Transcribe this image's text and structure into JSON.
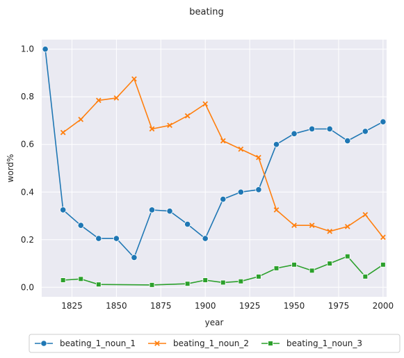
{
  "chart_data": {
    "type": "line",
    "title": "beating",
    "xlabel": "year",
    "ylabel": "word%",
    "xlim": [
      1808,
      2002
    ],
    "ylim": [
      -0.04,
      1.04
    ],
    "xticks": [
      1825,
      1850,
      1875,
      1900,
      1925,
      1950,
      1975,
      2000
    ],
    "yticks": [
      0.0,
      0.2,
      0.4,
      0.6,
      0.8,
      1.0
    ],
    "xtick_labels": [
      "1825",
      "1850",
      "1875",
      "1900",
      "1925",
      "1950",
      "1975",
      "2000"
    ],
    "ytick_labels": [
      "0.0",
      "0.2",
      "0.4",
      "0.6",
      "0.8",
      "1.0"
    ],
    "grid": true,
    "legend_position": "bottom",
    "series": [
      {
        "name": "beating_1_noun_1",
        "color": "#1f77b4",
        "marker": "circle",
        "x": [
          1810,
          1820,
          1830,
          1840,
          1850,
          1860,
          1870,
          1880,
          1890,
          1900,
          1910,
          1920,
          1930,
          1940,
          1950,
          1960,
          1970,
          1980,
          1990,
          2000
        ],
        "y": [
          1.0,
          0.325,
          0.26,
          0.205,
          0.205,
          0.125,
          0.325,
          0.32,
          0.265,
          0.205,
          0.37,
          0.4,
          0.41,
          0.6,
          0.645,
          0.665,
          0.665,
          0.615,
          0.655,
          0.695
        ]
      },
      {
        "name": "beating_1_noun_2",
        "color": "#ff7f0e",
        "marker": "x",
        "x": [
          1820,
          1830,
          1840,
          1850,
          1860,
          1870,
          1880,
          1890,
          1900,
          1910,
          1920,
          1930,
          1940,
          1950,
          1960,
          1970,
          1980,
          1990,
          2000
        ],
        "y": [
          0.65,
          0.705,
          0.785,
          0.795,
          0.875,
          0.665,
          0.68,
          0.72,
          0.77,
          0.615,
          0.58,
          0.545,
          0.325,
          0.26,
          0.26,
          0.235,
          0.255,
          0.305,
          0.21
        ]
      },
      {
        "name": "beating_1_noun_3",
        "color": "#2ca02c",
        "marker": "square",
        "x": [
          1820,
          1830,
          1840,
          1870,
          1890,
          1900,
          1910,
          1920,
          1930,
          1940,
          1950,
          1960,
          1970,
          1980,
          1990,
          2000
        ],
        "y": [
          0.03,
          0.035,
          0.012,
          0.01,
          0.015,
          0.03,
          0.02,
          0.025,
          0.045,
          0.08,
          0.095,
          0.07,
          0.1,
          0.13,
          0.045,
          0.095
        ]
      }
    ]
  }
}
